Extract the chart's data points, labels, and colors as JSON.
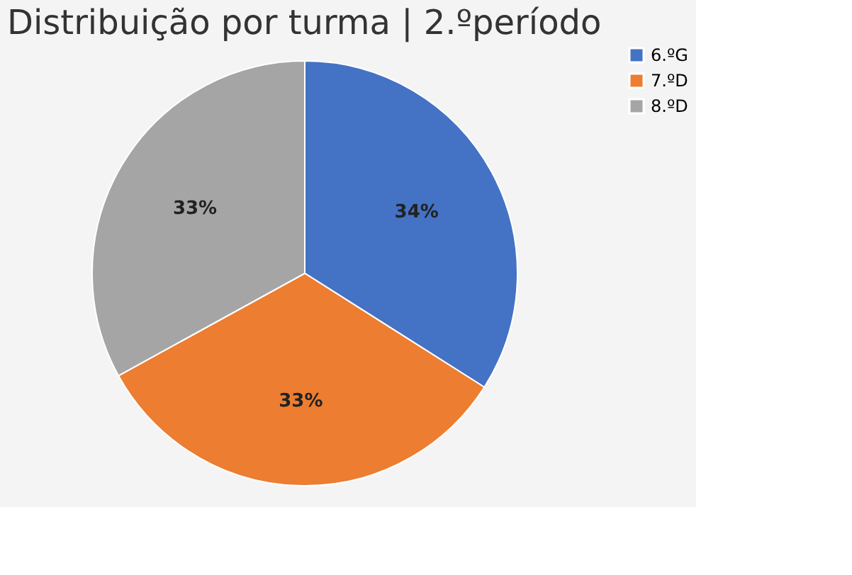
{
  "chart_data": {
    "type": "pie",
    "title": "Distribuição por turma | 2.ºperíodo",
    "categories": [
      "6.ºG",
      "7.ºD",
      "8.ºD"
    ],
    "values": [
      34,
      33,
      33
    ],
    "colors": [
      "#4472c4",
      "#ed7d31",
      "#a5a5a5"
    ],
    "value_labels": [
      "34%",
      "33%",
      "33%"
    ],
    "legend": "right"
  }
}
